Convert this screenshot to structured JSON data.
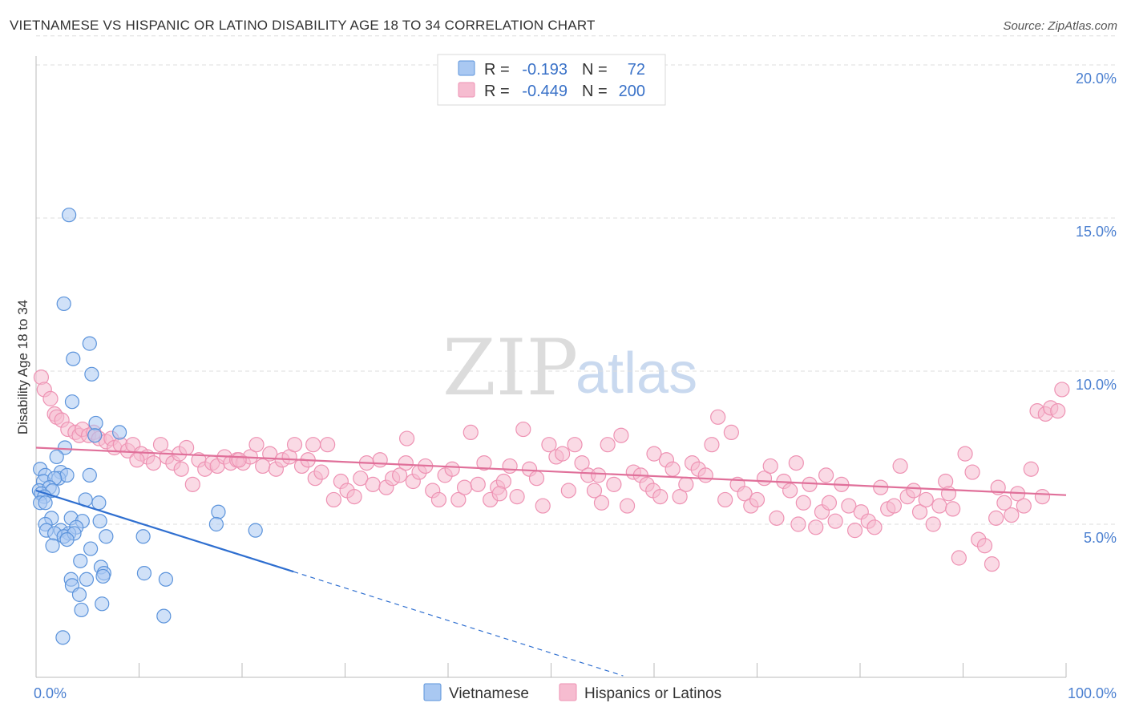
{
  "title": "VIETNAMESE VS HISPANIC OR LATINO DISABILITY AGE 18 TO 34 CORRELATION CHART",
  "source": "Source: ZipAtlas.com",
  "watermark": {
    "part1": "ZIP",
    "part2": "atlas"
  },
  "colors": {
    "vietnamese_fill": "#a9c8f2",
    "vietnamese_stroke": "#5b93db",
    "vietnamese_line": "#2f6fd0",
    "hispanic_fill": "#f6bcd0",
    "hispanic_stroke": "#ee92b3",
    "hispanic_line": "#e0709a",
    "grid": "#dddddd",
    "tick": "#4a7fd0"
  },
  "legend_top": {
    "rows": [
      {
        "r_label": "R =",
        "r_value": "-0.193",
        "n_label": "N =",
        "n_value": "72"
      },
      {
        "r_label": "R =",
        "r_value": "-0.449",
        "n_label": "N =",
        "n_value": "200"
      }
    ]
  },
  "legend_bottom": {
    "items": [
      "Vietnamese",
      "Hispanics or Latinos"
    ]
  },
  "chart_data": {
    "type": "scatter",
    "ylabel": "Disability Age 18 to 34",
    "xlim": [
      0,
      100
    ],
    "ylim": [
      0,
      21
    ],
    "x_tick_labels": [
      "0.0%",
      "100.0%"
    ],
    "y_ticks": [
      {
        "value": 5,
        "label": "5.0%"
      },
      {
        "value": 10,
        "label": "10.0%"
      },
      {
        "value": 15,
        "label": "15.0%"
      },
      {
        "value": 20,
        "label": "20.0%"
      }
    ],
    "grid": "horizontal dashed",
    "series": [
      {
        "name": "Vietnamese",
        "trend": {
          "x0": 0,
          "y0": 6.1,
          "x1": 25,
          "y1": 3.45,
          "dash_to_x": 57,
          "dash_to_y": 0.05
        },
        "points": [
          [
            3.2,
            15.1
          ],
          [
            2.7,
            12.2
          ],
          [
            5.2,
            10.9
          ],
          [
            3.6,
            10.4
          ],
          [
            5.4,
            9.9
          ],
          [
            3.5,
            9.0
          ],
          [
            5.8,
            8.3
          ],
          [
            8.1,
            8.0
          ],
          [
            5.7,
            7.9
          ],
          [
            2.8,
            7.5
          ],
          [
            2.0,
            7.2
          ],
          [
            0.4,
            6.8
          ],
          [
            2.4,
            6.7
          ],
          [
            0.9,
            6.6
          ],
          [
            2.2,
            6.5
          ],
          [
            5.2,
            6.6
          ],
          [
            3.0,
            6.6
          ],
          [
            0.7,
            6.4
          ],
          [
            1.8,
            6.5
          ],
          [
            0.3,
            6.1
          ],
          [
            1.3,
            6.2
          ],
          [
            0.5,
            6.0
          ],
          [
            1.6,
            6.1
          ],
          [
            0.8,
            5.9
          ],
          [
            0.4,
            5.7
          ],
          [
            4.8,
            5.8
          ],
          [
            6.1,
            5.7
          ],
          [
            0.9,
            5.7
          ],
          [
            1.5,
            5.2
          ],
          [
            3.4,
            5.2
          ],
          [
            4.5,
            5.1
          ],
          [
            6.2,
            5.1
          ],
          [
            0.9,
            5.0
          ],
          [
            3.9,
            4.9
          ],
          [
            1.0,
            4.8
          ],
          [
            2.4,
            4.8
          ],
          [
            1.8,
            4.7
          ],
          [
            3.2,
            4.7
          ],
          [
            2.7,
            4.6
          ],
          [
            3.7,
            4.7
          ],
          [
            6.8,
            4.6
          ],
          [
            10.4,
            4.6
          ],
          [
            3.0,
            4.5
          ],
          [
            1.6,
            4.3
          ],
          [
            5.3,
            4.2
          ],
          [
            4.3,
            3.8
          ],
          [
            6.3,
            3.6
          ],
          [
            10.5,
            3.4
          ],
          [
            6.6,
            3.4
          ],
          [
            6.5,
            3.3
          ],
          [
            12.6,
            3.2
          ],
          [
            3.4,
            3.2
          ],
          [
            4.9,
            3.2
          ],
          [
            3.5,
            3.0
          ],
          [
            4.2,
            2.7
          ],
          [
            6.4,
            2.4
          ],
          [
            4.4,
            2.2
          ],
          [
            12.4,
            2.0
          ],
          [
            2.6,
            1.3
          ],
          [
            17.7,
            5.4
          ],
          [
            17.5,
            5.0
          ],
          [
            21.3,
            4.8
          ]
        ]
      },
      {
        "name": "Hispanics or Latinos",
        "trend": {
          "x0": 0,
          "y0": 7.5,
          "x1": 100,
          "y1": 5.95
        },
        "points": [
          [
            0.5,
            9.8
          ],
          [
            0.8,
            9.4
          ],
          [
            1.4,
            9.1
          ],
          [
            1.8,
            8.6
          ],
          [
            2.0,
            8.5
          ],
          [
            2.5,
            8.4
          ],
          [
            3.1,
            8.1
          ],
          [
            3.8,
            8.0
          ],
          [
            4.2,
            7.9
          ],
          [
            4.5,
            8.1
          ],
          [
            5.1,
            7.9
          ],
          [
            5.6,
            8.0
          ],
          [
            6.1,
            7.8
          ],
          [
            6.8,
            7.7
          ],
          [
            7.3,
            7.8
          ],
          [
            7.6,
            7.5
          ],
          [
            8.2,
            7.6
          ],
          [
            8.9,
            7.4
          ],
          [
            9.4,
            7.6
          ],
          [
            10.2,
            7.3
          ],
          [
            10.8,
            7.2
          ],
          [
            11.4,
            7.0
          ],
          [
            12.1,
            7.6
          ],
          [
            12.7,
            7.2
          ],
          [
            13.3,
            7.0
          ],
          [
            13.9,
            7.3
          ],
          [
            14.6,
            7.5
          ],
          [
            15.2,
            6.3
          ],
          [
            15.8,
            7.1
          ],
          [
            16.4,
            6.8
          ],
          [
            17.1,
            7.0
          ],
          [
            17.6,
            6.9
          ],
          [
            18.3,
            7.2
          ],
          [
            18.9,
            7.0
          ],
          [
            19.5,
            7.1
          ],
          [
            20.1,
            7.0
          ],
          [
            20.8,
            7.2
          ],
          [
            21.4,
            7.6
          ],
          [
            22.0,
            6.9
          ],
          [
            22.7,
            7.3
          ],
          [
            23.3,
            6.8
          ],
          [
            23.9,
            7.1
          ],
          [
            24.6,
            7.2
          ],
          [
            25.1,
            7.6
          ],
          [
            25.8,
            6.9
          ],
          [
            26.4,
            7.1
          ],
          [
            27.1,
            6.5
          ],
          [
            27.7,
            6.7
          ],
          [
            28.3,
            7.6
          ],
          [
            28.9,
            5.8
          ],
          [
            29.6,
            6.4
          ],
          [
            30.2,
            6.1
          ],
          [
            30.9,
            5.9
          ],
          [
            31.5,
            6.5
          ],
          [
            32.1,
            7.0
          ],
          [
            32.7,
            6.3
          ],
          [
            33.4,
            7.1
          ],
          [
            34.0,
            6.2
          ],
          [
            34.6,
            6.5
          ],
          [
            35.3,
            6.6
          ],
          [
            35.9,
            7.0
          ],
          [
            36.6,
            6.4
          ],
          [
            37.2,
            6.7
          ],
          [
            37.8,
            6.9
          ],
          [
            38.5,
            6.1
          ],
          [
            39.1,
            5.8
          ],
          [
            39.7,
            6.6
          ],
          [
            40.4,
            6.8
          ],
          [
            41.0,
            5.8
          ],
          [
            41.6,
            6.2
          ],
          [
            42.2,
            8.0
          ],
          [
            42.9,
            6.3
          ],
          [
            43.5,
            7.0
          ],
          [
            44.1,
            5.8
          ],
          [
            44.8,
            6.2
          ],
          [
            45.4,
            6.4
          ],
          [
            46.0,
            6.9
          ],
          [
            46.7,
            5.9
          ],
          [
            47.3,
            8.1
          ],
          [
            47.9,
            6.8
          ],
          [
            48.6,
            6.5
          ],
          [
            49.2,
            5.6
          ],
          [
            49.8,
            7.6
          ],
          [
            50.5,
            7.2
          ],
          [
            51.1,
            7.3
          ],
          [
            51.7,
            6.1
          ],
          [
            52.3,
            7.6
          ],
          [
            53.0,
            7.0
          ],
          [
            53.6,
            6.6
          ],
          [
            54.2,
            6.1
          ],
          [
            54.9,
            5.7
          ],
          [
            55.5,
            7.6
          ],
          [
            56.1,
            6.3
          ],
          [
            56.8,
            7.9
          ],
          [
            57.4,
            5.6
          ],
          [
            58.0,
            6.7
          ],
          [
            58.7,
            6.6
          ],
          [
            59.3,
            6.3
          ],
          [
            59.9,
            6.1
          ],
          [
            60.6,
            5.9
          ],
          [
            61.2,
            7.1
          ],
          [
            61.8,
            6.8
          ],
          [
            62.5,
            5.9
          ],
          [
            63.1,
            6.3
          ],
          [
            63.7,
            7.0
          ],
          [
            64.3,
            6.8
          ],
          [
            65.0,
            6.6
          ],
          [
            65.6,
            7.6
          ],
          [
            66.2,
            8.5
          ],
          [
            66.9,
            5.8
          ],
          [
            67.5,
            8.0
          ],
          [
            68.1,
            6.3
          ],
          [
            68.8,
            6.0
          ],
          [
            69.4,
            5.6
          ],
          [
            70.0,
            5.8
          ],
          [
            70.7,
            6.5
          ],
          [
            71.3,
            6.9
          ],
          [
            71.9,
            5.2
          ],
          [
            72.6,
            6.4
          ],
          [
            73.2,
            6.1
          ],
          [
            73.8,
            7.0
          ],
          [
            74.5,
            5.7
          ],
          [
            75.1,
            6.3
          ],
          [
            75.7,
            4.9
          ],
          [
            76.3,
            5.4
          ],
          [
            77.0,
            5.7
          ],
          [
            77.6,
            5.1
          ],
          [
            78.2,
            6.3
          ],
          [
            78.9,
            5.6
          ],
          [
            79.5,
            4.8
          ],
          [
            80.1,
            5.4
          ],
          [
            80.8,
            5.1
          ],
          [
            81.4,
            4.9
          ],
          [
            82.0,
            6.2
          ],
          [
            82.7,
            5.5
          ],
          [
            83.3,
            5.6
          ],
          [
            83.9,
            6.9
          ],
          [
            84.6,
            5.9
          ],
          [
            85.2,
            6.1
          ],
          [
            85.8,
            5.4
          ],
          [
            86.4,
            5.8
          ],
          [
            87.1,
            5.0
          ],
          [
            87.7,
            5.6
          ],
          [
            88.3,
            6.4
          ],
          [
            89.0,
            5.5
          ],
          [
            89.6,
            3.9
          ],
          [
            90.2,
            7.3
          ],
          [
            90.9,
            6.7
          ],
          [
            91.5,
            4.5
          ],
          [
            92.1,
            4.3
          ],
          [
            92.8,
            3.7
          ],
          [
            93.4,
            6.2
          ],
          [
            94.0,
            5.7
          ],
          [
            94.7,
            5.3
          ],
          [
            95.3,
            6.0
          ],
          [
            95.9,
            5.6
          ],
          [
            96.6,
            6.8
          ],
          [
            97.2,
            8.7
          ],
          [
            98.0,
            8.6
          ],
          [
            98.5,
            8.8
          ],
          [
            99.2,
            8.7
          ],
          [
            99.6,
            9.4
          ],
          [
            97.7,
            5.9
          ],
          [
            93.2,
            5.2
          ],
          [
            60.0,
            7.3
          ],
          [
            54.6,
            6.6
          ],
          [
            36.0,
            7.8
          ],
          [
            26.9,
            7.6
          ],
          [
            19.7,
            7.1
          ],
          [
            9.8,
            7.1
          ],
          [
            14.1,
            6.8
          ],
          [
            45.0,
            6.0
          ],
          [
            76.7,
            6.6
          ],
          [
            88.6,
            6.0
          ],
          [
            74.0,
            5.0
          ]
        ]
      }
    ]
  }
}
